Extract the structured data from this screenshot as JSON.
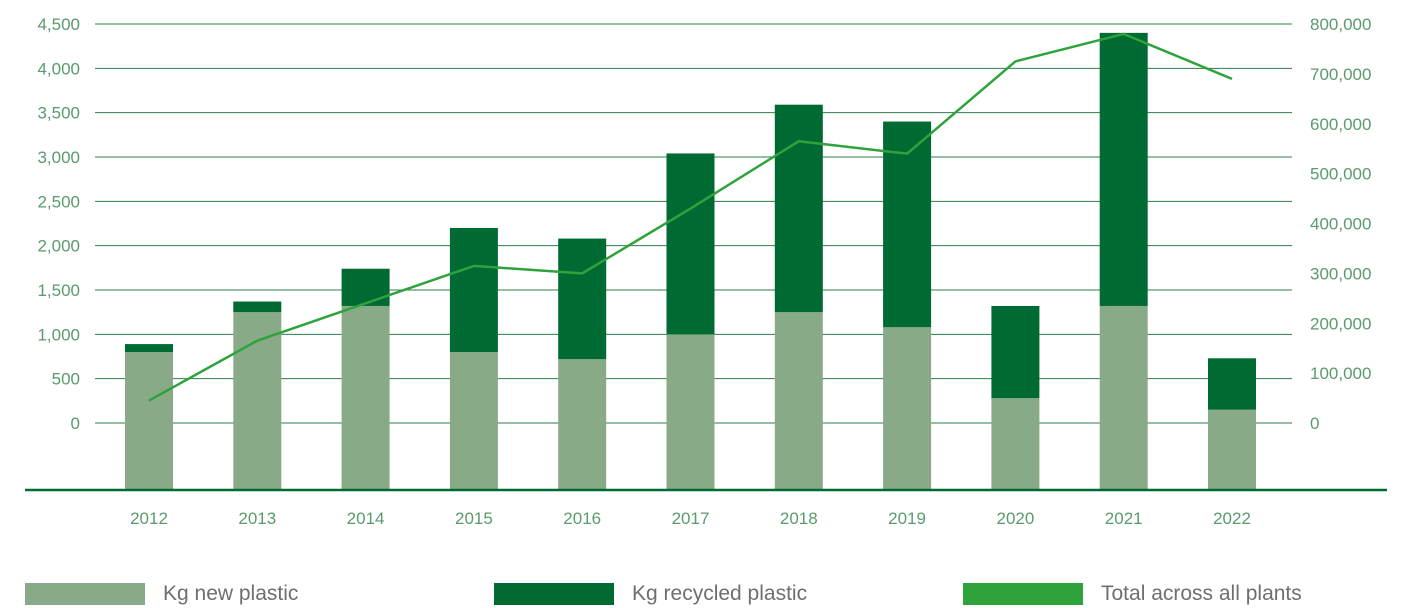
{
  "chart_data": {
    "type": "bar",
    "stacked": true,
    "categories": [
      "2012",
      "2013",
      "2014",
      "2015",
      "2016",
      "2017",
      "2018",
      "2019",
      "2020",
      "2021",
      "2022"
    ],
    "series": [
      {
        "name": "Kg new plastic",
        "axis": "left",
        "type": "bar",
        "color": "#88aa86",
        "values": [
          800,
          1250,
          1320,
          800,
          720,
          1000,
          1250,
          1080,
          280,
          1320,
          150
        ]
      },
      {
        "name": "Kg recycled plastic",
        "axis": "left",
        "type": "bar",
        "color": "#006a33",
        "values": [
          90,
          120,
          420,
          1400,
          1360,
          2040,
          2340,
          2320,
          1040,
          3080,
          580
        ]
      },
      {
        "name": "Total across all plants",
        "axis": "right",
        "type": "line",
        "color": "#2ea33c",
        "values": [
          45000,
          165000,
          240000,
          315000,
          300000,
          430000,
          565000,
          540000,
          725000,
          780000,
          690000
        ]
      }
    ],
    "left_axis": {
      "ylim": [
        0,
        4500
      ],
      "ticks": [
        0,
        500,
        1000,
        1500,
        2000,
        2500,
        3000,
        3500,
        4000,
        4500
      ],
      "tick_labels": [
        "0",
        "500",
        "1,000",
        "1,500",
        "2,000",
        "2,500",
        "3,000",
        "3,500",
        "4,000",
        "4,500"
      ]
    },
    "right_axis": {
      "ylim": [
        0,
        800000
      ],
      "ticks": [
        0,
        100000,
        200000,
        300000,
        400000,
        500000,
        600000,
        700000,
        800000
      ],
      "tick_labels": [
        "0",
        "100,000",
        "200,000",
        "300,000",
        "400,000",
        "500,000",
        "600,000",
        "700,000",
        "800,000"
      ]
    },
    "grid": true,
    "legend_position": "bottom",
    "title": "",
    "xlabel": "",
    "ylabel": ""
  },
  "legend": [
    {
      "label": "Kg new plastic",
      "color": "#88aa86"
    },
    {
      "label": "Kg recycled plastic",
      "color": "#006a33"
    },
    {
      "label": "Total across all plants",
      "color": "#2ea33c"
    }
  ]
}
